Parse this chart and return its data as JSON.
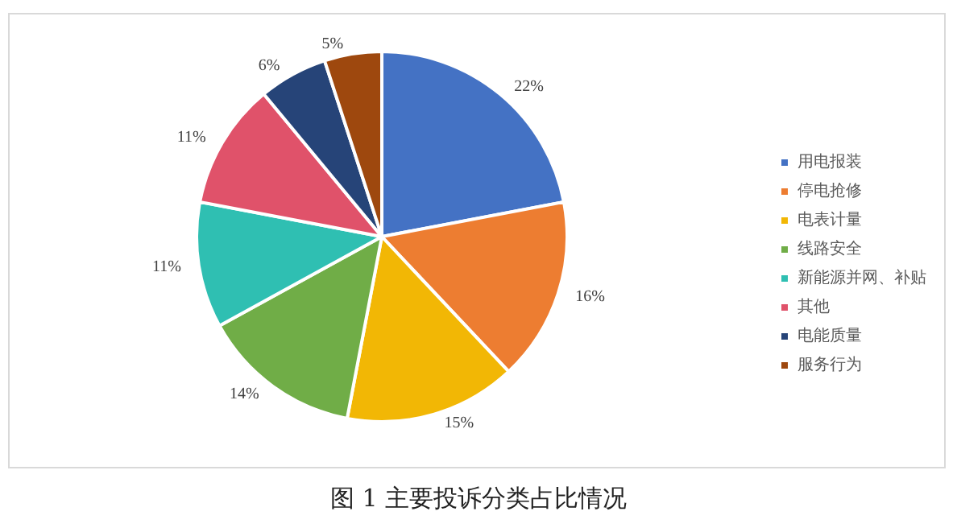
{
  "chart_data": {
    "type": "pie",
    "title": "图 1 主要投诉分类占比情况",
    "categories": [
      "用电报装",
      "停电抢修",
      "电表计量",
      "线路安全",
      "新能源并网、补贴",
      "其他",
      "电能质量",
      "服务行为"
    ],
    "values": [
      22,
      16,
      15,
      14,
      11,
      11,
      6,
      5
    ],
    "value_labels": [
      "22%",
      "16%",
      "15%",
      "14%",
      "11%",
      "11%",
      "6%",
      "5%"
    ],
    "colors": [
      "#4472c4",
      "#ed7d31",
      "#f2b705",
      "#70ad47",
      "#2fbfb2",
      "#e0526a",
      "#264478",
      "#9e480e"
    ],
    "legend": "right"
  }
}
